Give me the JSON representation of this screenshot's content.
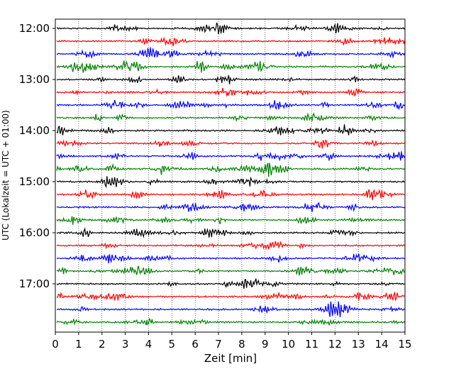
{
  "chart_data": {
    "type": "line",
    "title": "",
    "xlabel": "Zeit  [min]",
    "ylabel": "UTC (Lokalzeit = UTC + 01:00)",
    "xlim": [
      0,
      15
    ],
    "x_ticks": [
      "0",
      "1",
      "2",
      "3",
      "4",
      "5",
      "6",
      "7",
      "8",
      "9",
      "10",
      "11",
      "12",
      "13",
      "14",
      "15"
    ],
    "y_ticks": [
      "12:00",
      "13:00",
      "14:00",
      "15:00",
      "16:00",
      "17:00"
    ],
    "grid": "vertical dotted lines at each minute",
    "trace_start_times": [
      "12:00",
      "12:15",
      "12:30",
      "12:45",
      "13:00",
      "13:15",
      "13:30",
      "13:45",
      "14:00",
      "14:15",
      "14:30",
      "14:45",
      "15:00",
      "15:15",
      "15:30",
      "15:45",
      "16:00",
      "16:15",
      "16:30",
      "16:45",
      "17:00",
      "17:15",
      "17:30",
      "17:45"
    ],
    "trace_minutes_each": 15,
    "trace_color_cycle": [
      "#000000",
      "#ff0000",
      "#0000ff",
      "#008000"
    ]
  }
}
